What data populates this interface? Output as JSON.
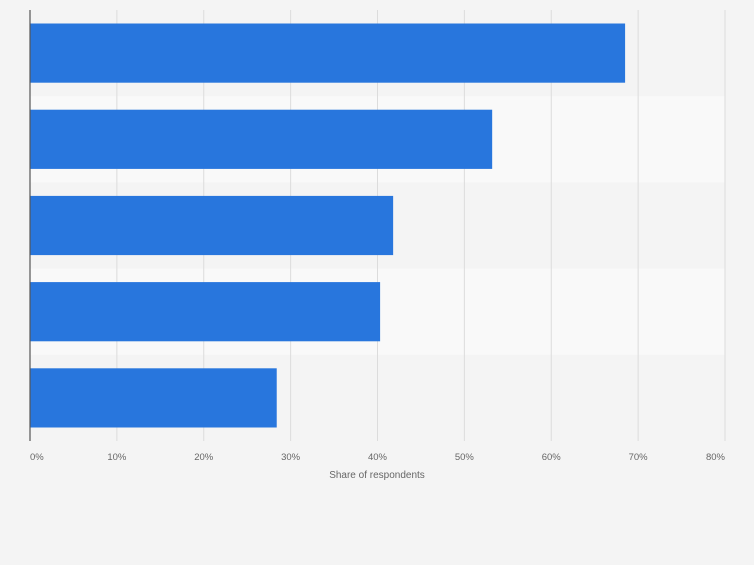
{
  "chart_data": {
    "type": "bar",
    "orientation": "horizontal",
    "title": "",
    "xlabel": "Share of respondents",
    "ylabel": "",
    "categories": [
      "",
      "",
      "",
      "",
      ""
    ],
    "values": [
      68.5,
      53.2,
      41.8,
      40.3,
      28.4
    ],
    "unit": "%",
    "xlim": [
      0,
      80
    ],
    "x_ticks": [
      0,
      10,
      20,
      30,
      40,
      50,
      60,
      70,
      80
    ],
    "x_tick_labels": [
      "0%",
      "10%",
      "20%",
      "30%",
      "40%",
      "50%",
      "60%",
      "70%",
      "80%"
    ],
    "grid": true,
    "legend": "none",
    "colors": {
      "bar": "#2876dd",
      "background": "#f4f4f4",
      "band_alt": "#f9f9f9",
      "grid": "#dcdcdc",
      "axis": "#555555",
      "tick_text": "#666666"
    }
  }
}
